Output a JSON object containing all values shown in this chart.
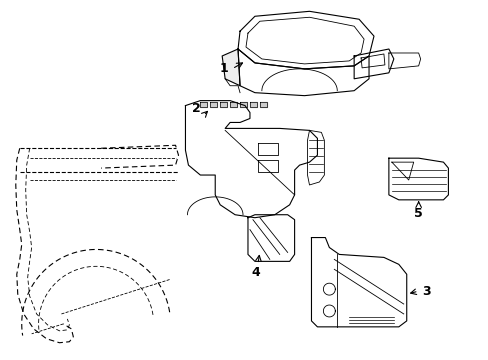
{
  "background_color": "#ffffff",
  "line_color": "#000000",
  "fig_width": 4.89,
  "fig_height": 3.6,
  "dpi": 100,
  "font_size": 9
}
